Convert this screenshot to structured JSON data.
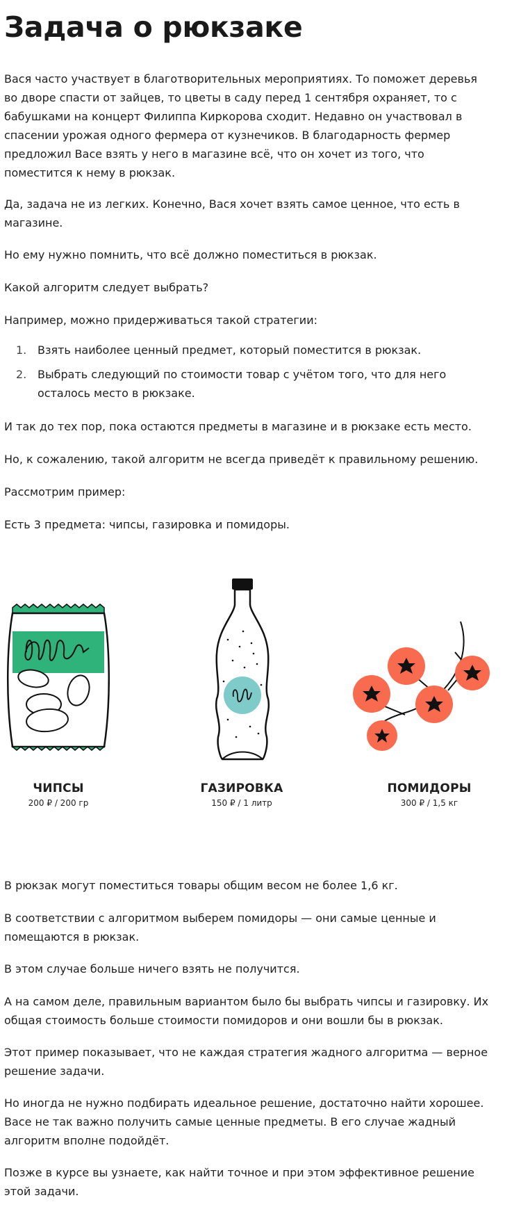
{
  "title": "Задача о рюкзаке",
  "intro": [
    "Вася часто участвует в благотворительных мероприятиях. То поможет деревья во дворе спасти от зайцев, то цветы в саду перед 1 сентября охраняет, то с бабушками на концерт Филиппа Киркорова сходит. Недавно он участвовал в спасении урожая одного фермера от кузнечиков. В благодарность фермер предложил Васе взять у него в магазине всё, что он хочет из того, что поместится к нему в рюкзак.",
    "Да, задача не из легких. Конечно, Вася хочет взять самое ценное, что есть в магазине.",
    "Но ему нужно помнить, что всё должно поместиться в рюкзак.",
    "Какой алгоритм следует выбрать?",
    "Например, можно придерживаться такой стратегии:"
  ],
  "strategy": [
    {
      "num": "1.",
      "text": "Взять наиболее ценный предмет, который поместится в рюкзак."
    },
    {
      "num": "2.",
      "text": "Выбрать следующий по стоимости товар с учётом того, что для него осталось место в рюкзаке."
    }
  ],
  "middle": [
    "И так до тех пор, пока остаются предметы в магазине и в рюкзаке есть место.",
    "Но, к сожалению, такой алгоритм не всегда приведёт к правильному решению.",
    "Рассмотрим пример:",
    "Есть 3 предмета: чипсы, газировка и помидоры."
  ],
  "items": [
    {
      "name": "ЧИПСЫ",
      "details": "200 ₽ / 200 гр"
    },
    {
      "name": "ГАЗИРОВКА",
      "details": "150 ₽ / 1 литр"
    },
    {
      "name": "ПОМИДОРЫ",
      "details": "300 ₽ / 1,5 кг"
    }
  ],
  "outro": [
    "В рюкзак могут поместиться товары общим весом не более 1,6 кг.",
    "В соответствии с алгоритмом выберем помидоры — они самые ценные и помещаются в рюкзак.",
    "В этом случае больше ничего взять не получится.",
    "А на самом деле, правильным вариантом было бы выбрать чипсы и газировку. Их общая стоимость больше стоимости помидоров и они вошли бы в рюкзак.",
    "Этот пример показывает, что не каждая стратегия жадного алгоритма — верное решение задачи.",
    "Но иногда не нужно подбирать идеальное решение, достаточно найти хорошее. Васе не так важно получить самые ценные предметы. В его случае жадный алгоритм вполне подойдёт.",
    "Позже в курсе вы узнаете, как найти точное и при этом эффективное решение этой задачи."
  ],
  "colors": {
    "chips_green": "#2fb37a",
    "soda_teal": "#7ecbc9",
    "tomato": "#f96b4f"
  }
}
